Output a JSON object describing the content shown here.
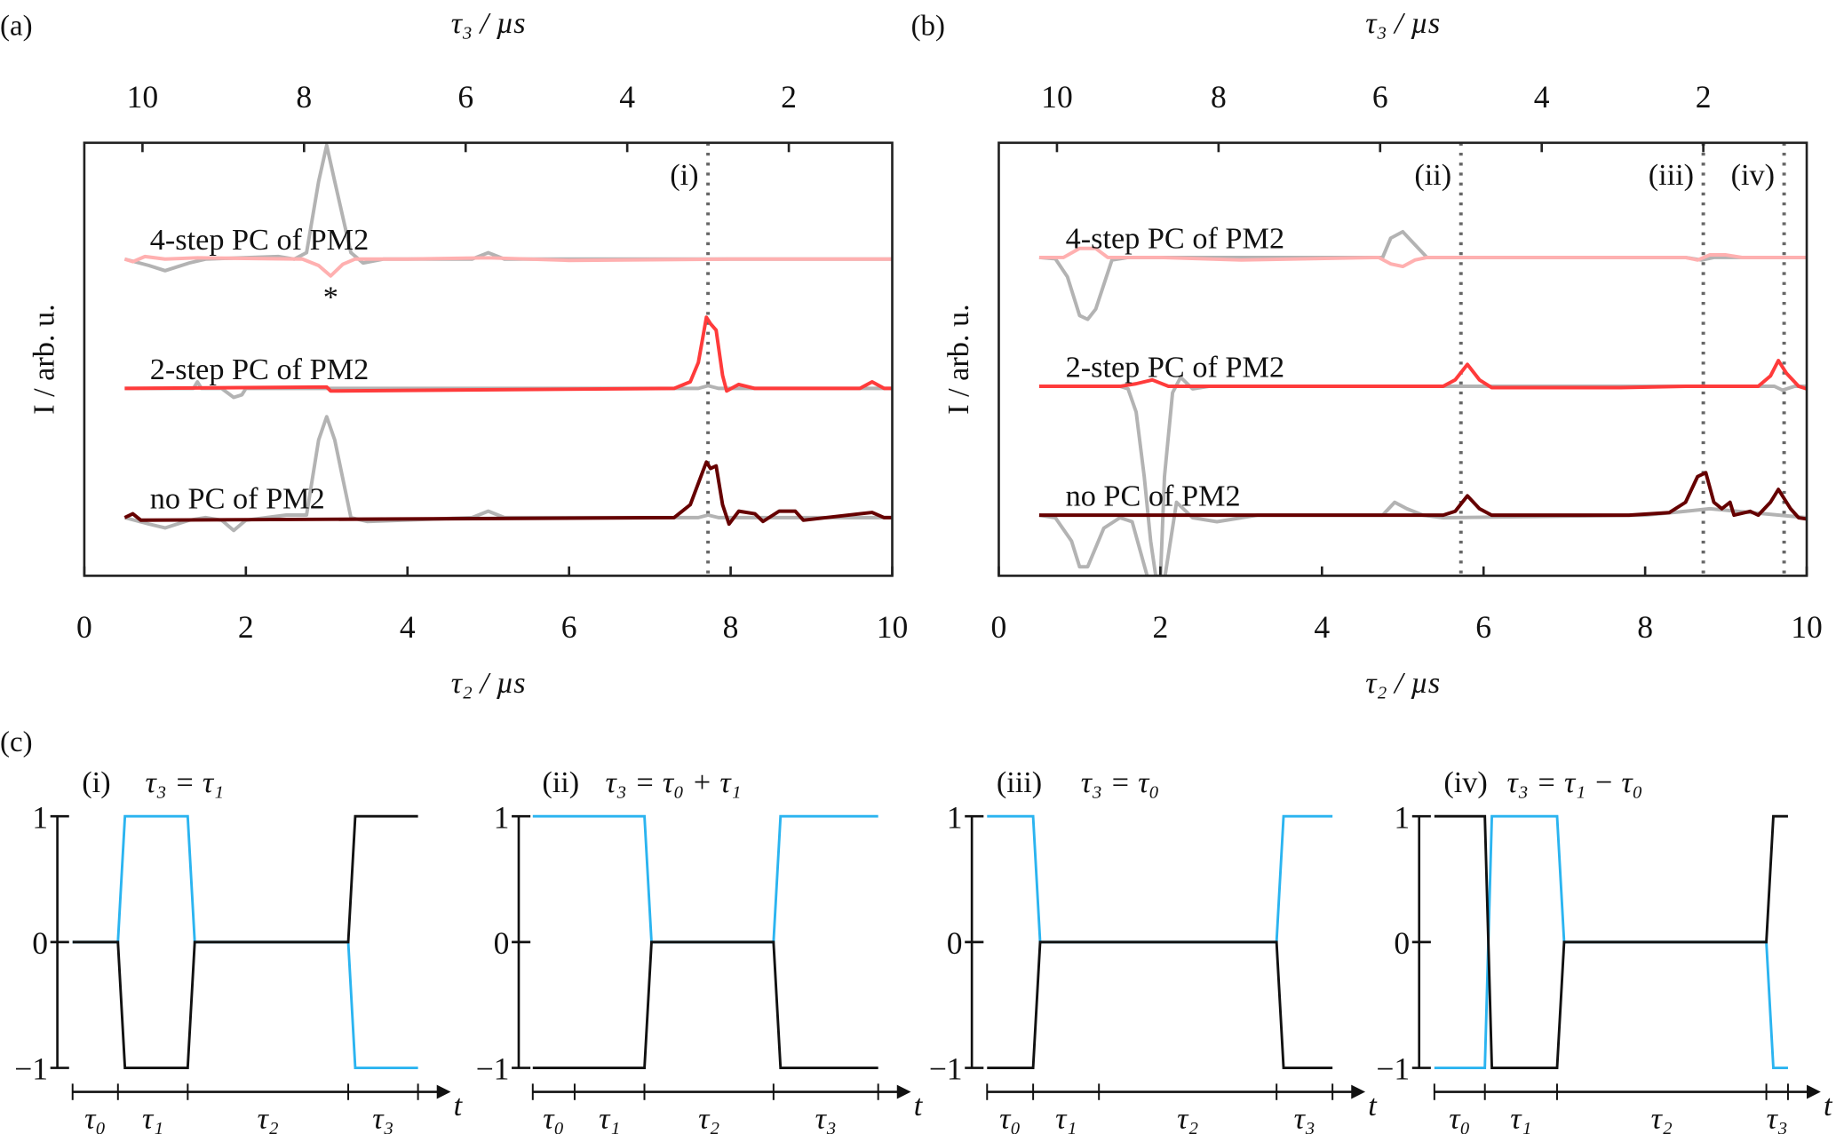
{
  "panel_labels": {
    "a": "(a)",
    "b": "(b)",
    "c": "(c)"
  },
  "colors": {
    "reference": "#b3b3b3",
    "four_step": "#ffb0b0",
    "two_step": "#ff3b3b",
    "no_pc": "#660000",
    "marker_line": "#666666",
    "waveform_pm1": "#111111",
    "waveform_pm2": "#2bb4f0"
  },
  "chart_data": [
    {
      "panel": "(a)",
      "type": "line",
      "xlabel": "τ₂ / µs",
      "top_xlabel": "τ₃ / µs",
      "ylabel": "I / arb. u.",
      "xlim": [
        0,
        10
      ],
      "ylim": [
        -0.45,
        2.9
      ],
      "xticks": [
        "0",
        "2",
        "4",
        "6",
        "8",
        "10"
      ],
      "top_xticks": [
        "10",
        "8",
        "6",
        "4",
        "2"
      ],
      "top_axis_relation": "τ₃ = 10.72 − τ₂",
      "grid": false,
      "vlines": [
        {
          "x": 7.72,
          "label": "(i)"
        }
      ],
      "annotations": [
        {
          "text": "*",
          "x": 3.05,
          "y": 1.72
        }
      ],
      "series": [
        {
          "name": "4-step PC of PM2",
          "label_y": 2.0,
          "reference": [
            [
              0.5,
              2
            ],
            [
              0.8,
              1.95
            ],
            [
              1.0,
              1.91
            ],
            [
              1.3,
              1.97
            ],
            [
              1.5,
              2
            ],
            [
              2.4,
              2.02
            ],
            [
              2.6,
              2.0
            ],
            [
              2.75,
              2.05
            ],
            [
              2.9,
              2.6
            ],
            [
              3.0,
              2.88
            ],
            [
              3.1,
              2.6
            ],
            [
              3.3,
              2.05
            ],
            [
              3.45,
              1.97
            ],
            [
              3.7,
              2.0
            ],
            [
              4.8,
              2.0
            ],
            [
              5.0,
              2.05
            ],
            [
              5.2,
              2.0
            ],
            [
              10,
              2.0
            ]
          ],
          "values": [
            [
              0.5,
              2.0
            ],
            [
              0.6,
              1.98
            ],
            [
              0.75,
              2.02
            ],
            [
              1.0,
              2.0
            ],
            [
              1.4,
              2.01
            ],
            [
              2.7,
              2.0
            ],
            [
              2.9,
              1.95
            ],
            [
              3.05,
              1.87
            ],
            [
              3.2,
              1.96
            ],
            [
              3.35,
              2.0
            ],
            [
              4.0,
              2.0
            ],
            [
              5.0,
              2.01
            ],
            [
              6.0,
              1.99
            ],
            [
              8.0,
              2.0
            ],
            [
              10,
              2.0
            ]
          ]
        },
        {
          "name": "2-step PC of PM2",
          "label_y": 1.0,
          "reference": [
            [
              0.5,
              1
            ],
            [
              1.35,
              1
            ],
            [
              1.4,
              1.05
            ],
            [
              1.45,
              1
            ],
            [
              1.7,
              1
            ],
            [
              1.85,
              0.93
            ],
            [
              1.95,
              0.95
            ],
            [
              2.0,
              1
            ],
            [
              7.6,
              1
            ],
            [
              7.72,
              1.02
            ],
            [
              7.85,
              1
            ],
            [
              10,
              1
            ]
          ],
          "values": [
            [
              0.5,
              1
            ],
            [
              3.0,
              1.01
            ],
            [
              3.05,
              0.98
            ],
            [
              7.3,
              1
            ],
            [
              7.5,
              1.05
            ],
            [
              7.6,
              1.2
            ],
            [
              7.7,
              1.55
            ],
            [
              7.75,
              1.5
            ],
            [
              7.82,
              1.45
            ],
            [
              7.9,
              1.1
            ],
            [
              7.95,
              0.98
            ],
            [
              8.1,
              1.03
            ],
            [
              8.3,
              1.0
            ],
            [
              9.6,
              1.0
            ],
            [
              9.75,
              1.05
            ],
            [
              9.9,
              1.0
            ],
            [
              10,
              1.0
            ]
          ]
        },
        {
          "name": "no PC of PM2",
          "label_y": 0.0,
          "reference": [
            [
              0.5,
              0
            ],
            [
              0.8,
              -0.05
            ],
            [
              1.0,
              -0.08
            ],
            [
              1.3,
              -0.02
            ],
            [
              1.5,
              0
            ],
            [
              1.7,
              -0.02
            ],
            [
              1.85,
              -0.1
            ],
            [
              2.0,
              -0.02
            ],
            [
              2.5,
              0.02
            ],
            [
              2.75,
              0.02
            ],
            [
              2.9,
              0.6
            ],
            [
              3.0,
              0.78
            ],
            [
              3.1,
              0.6
            ],
            [
              3.3,
              0.0
            ],
            [
              3.5,
              -0.03
            ],
            [
              4.8,
              0
            ],
            [
              5.0,
              0.05
            ],
            [
              5.2,
              0
            ],
            [
              7.6,
              0
            ],
            [
              7.72,
              0.02
            ],
            [
              7.85,
              0
            ],
            [
              10,
              0
            ]
          ],
          "values": [
            [
              0.5,
              0
            ],
            [
              0.6,
              0.03
            ],
            [
              0.7,
              -0.02
            ],
            [
              7.3,
              0
            ],
            [
              7.5,
              0.1
            ],
            [
              7.65,
              0.35
            ],
            [
              7.7,
              0.43
            ],
            [
              7.75,
              0.38
            ],
            [
              7.82,
              0.4
            ],
            [
              7.9,
              0.1
            ],
            [
              7.98,
              -0.05
            ],
            [
              8.1,
              0.05
            ],
            [
              8.3,
              0.03
            ],
            [
              8.4,
              -0.03
            ],
            [
              8.6,
              0.05
            ],
            [
              8.8,
              0.05
            ],
            [
              8.9,
              -0.02
            ],
            [
              9.6,
              0.03
            ],
            [
              9.75,
              0.04
            ],
            [
              9.9,
              0.0
            ],
            [
              10,
              0.0
            ]
          ]
        }
      ]
    },
    {
      "panel": "(b)",
      "type": "line",
      "xlabel": "τ₂ / µs",
      "top_xlabel": "τ₃ / µs",
      "ylabel": "I / arb. u.",
      "xlim": [
        0,
        10
      ],
      "ylim": [
        -0.47,
        2.89
      ],
      "xticks": [
        "0",
        "2",
        "4",
        "6",
        "8",
        "10"
      ],
      "top_xticks": [
        "10",
        "8",
        "6",
        "4",
        "2"
      ],
      "top_axis_relation": "τ₃ = 10.72 − τ₂",
      "grid": false,
      "vlines": [
        {
          "x": 5.72,
          "label": "(ii)"
        },
        {
          "x": 8.72,
          "label": "(iii)"
        },
        {
          "x": 9.72,
          "label": "(iv)"
        }
      ],
      "annotations": [],
      "series": [
        {
          "name": "4-step PC of PM2",
          "label_y": 2.0,
          "reference": [
            [
              0.5,
              2
            ],
            [
              0.7,
              1.99
            ],
            [
              0.85,
              1.85
            ],
            [
              1.0,
              1.55
            ],
            [
              1.1,
              1.52
            ],
            [
              1.2,
              1.6
            ],
            [
              1.4,
              1.98
            ],
            [
              1.6,
              2.0
            ],
            [
              4.75,
              2.0
            ],
            [
              4.85,
              2.15
            ],
            [
              5.0,
              2.2
            ],
            [
              5.15,
              2.1
            ],
            [
              5.3,
              2.0
            ],
            [
              8.5,
              2.0
            ],
            [
              8.7,
              1.98
            ],
            [
              8.85,
              2.0
            ],
            [
              10,
              2.0
            ]
          ],
          "values": [
            [
              0.5,
              2.0
            ],
            [
              0.8,
              2.0
            ],
            [
              1.0,
              2.07
            ],
            [
              1.2,
              2.07
            ],
            [
              1.35,
              2.0
            ],
            [
              2.0,
              2.0
            ],
            [
              3.0,
              1.98
            ],
            [
              4.7,
              2.0
            ],
            [
              4.85,
              1.95
            ],
            [
              5.0,
              1.93
            ],
            [
              5.15,
              1.98
            ],
            [
              5.3,
              2.0
            ],
            [
              8.5,
              2.0
            ],
            [
              8.65,
              1.98
            ],
            [
              8.8,
              2.02
            ],
            [
              9.0,
              2.02
            ],
            [
              9.2,
              2.0
            ],
            [
              10,
              2.0
            ]
          ]
        },
        {
          "name": "2-step PC of PM2",
          "label_y": 1.0,
          "reference": [
            [
              0.5,
              1
            ],
            [
              1.5,
              1
            ],
            [
              1.6,
              0.98
            ],
            [
              1.7,
              0.8
            ],
            [
              1.8,
              0.3
            ],
            [
              1.88,
              -0.2
            ],
            [
              1.95,
              -0.5
            ],
            [
              2.0,
              -0.5
            ],
            [
              2.05,
              0.3
            ],
            [
              2.15,
              0.95
            ],
            [
              2.25,
              1.07
            ],
            [
              2.4,
              0.98
            ],
            [
              2.6,
              1.0
            ],
            [
              9.6,
              1.0
            ],
            [
              9.7,
              0.97
            ],
            [
              9.85,
              1.0
            ],
            [
              10,
              1.0
            ]
          ],
          "values": [
            [
              0.5,
              1.0
            ],
            [
              1.5,
              1.0
            ],
            [
              1.7,
              1.02
            ],
            [
              1.9,
              1.05
            ],
            [
              2.1,
              1.0
            ],
            [
              5.5,
              1.0
            ],
            [
              5.65,
              1.05
            ],
            [
              5.8,
              1.17
            ],
            [
              5.95,
              1.05
            ],
            [
              6.1,
              0.99
            ],
            [
              7.7,
              0.99
            ],
            [
              8.5,
              1.0
            ],
            [
              9.4,
              1.0
            ],
            [
              9.55,
              1.08
            ],
            [
              9.65,
              1.2
            ],
            [
              9.75,
              1.1
            ],
            [
              9.9,
              1.0
            ],
            [
              10,
              0.98
            ]
          ]
        },
        {
          "name": "no PC of PM2",
          "label_y": 0.0,
          "reference": [
            [
              0.5,
              0.0
            ],
            [
              0.7,
              -0.02
            ],
            [
              0.9,
              -0.2
            ],
            [
              1.0,
              -0.4
            ],
            [
              1.1,
              -0.4
            ],
            [
              1.3,
              -0.1
            ],
            [
              1.5,
              -0.02
            ],
            [
              1.65,
              -0.05
            ],
            [
              1.85,
              -0.5
            ],
            [
              2.05,
              -0.5
            ],
            [
              2.2,
              0.1
            ],
            [
              2.4,
              -0.02
            ],
            [
              2.7,
              -0.05
            ],
            [
              3.2,
              0
            ],
            [
              4.75,
              0
            ],
            [
              4.9,
              0.1
            ],
            [
              5.05,
              0.05
            ],
            [
              5.25,
              0
            ],
            [
              5.5,
              -0.02
            ],
            [
              8.0,
              0
            ],
            [
              8.5,
              0.03
            ],
            [
              8.8,
              0.05
            ],
            [
              10,
              -0.02
            ]
          ],
          "values": [
            [
              0.5,
              0
            ],
            [
              5.5,
              0
            ],
            [
              5.65,
              0.03
            ],
            [
              5.8,
              0.15
            ],
            [
              5.95,
              0.05
            ],
            [
              6.1,
              0
            ],
            [
              7.8,
              0
            ],
            [
              8.3,
              0.02
            ],
            [
              8.5,
              0.1
            ],
            [
              8.65,
              0.3
            ],
            [
              8.75,
              0.33
            ],
            [
              8.85,
              0.1
            ],
            [
              8.95,
              0.05
            ],
            [
              9.05,
              0.1
            ],
            [
              9.1,
              0.0
            ],
            [
              9.3,
              0.03
            ],
            [
              9.4,
              0.0
            ],
            [
              9.55,
              0.1
            ],
            [
              9.65,
              0.2
            ],
            [
              9.8,
              0.05
            ],
            [
              9.9,
              -0.02
            ],
            [
              10,
              -0.03
            ]
          ]
        }
      ]
    },
    {
      "panel": "(c)",
      "type": "line",
      "yticks": [
        "1",
        "0",
        "−1"
      ],
      "ylim": [
        -1,
        1
      ],
      "time_axis_label": "t",
      "segment_labels": [
        "τ₀",
        "τ₁",
        "τ₂",
        "τ₃"
      ],
      "subplots": [
        {
          "tag": "(i)",
          "condition": "τ₃ = τ₁",
          "durations": [
            0.65,
            1,
            2.3,
            1
          ],
          "black_levels": [
            0,
            -1,
            0,
            1
          ],
          "blue_levels": [
            0,
            1,
            0,
            -1
          ]
        },
        {
          "tag": "(ii)",
          "condition": "τ₃ = τ₀ + τ₁",
          "durations": [
            0.6,
            1,
            1.85,
            1.5
          ],
          "black_levels": [
            -1,
            -1,
            0,
            -1
          ],
          "blue_levels": [
            1,
            1,
            0,
            1
          ]
        },
        {
          "tag": "(iii)",
          "condition": "τ₃ = τ₀",
          "durations": [
            0.7,
            1,
            2.7,
            0.85
          ],
          "black_levels": [
            -1,
            0,
            0,
            -1
          ],
          "blue_levels": [
            1,
            0,
            0,
            1
          ]
        },
        {
          "tag": "(iv)",
          "condition": "τ₃ = τ₁ − τ₀",
          "durations": [
            0.7,
            1,
            2.9,
            0.3
          ],
          "black_levels": [
            1,
            -1,
            0,
            1
          ],
          "blue_levels": [
            -1,
            1,
            0,
            -1
          ]
        }
      ]
    }
  ]
}
